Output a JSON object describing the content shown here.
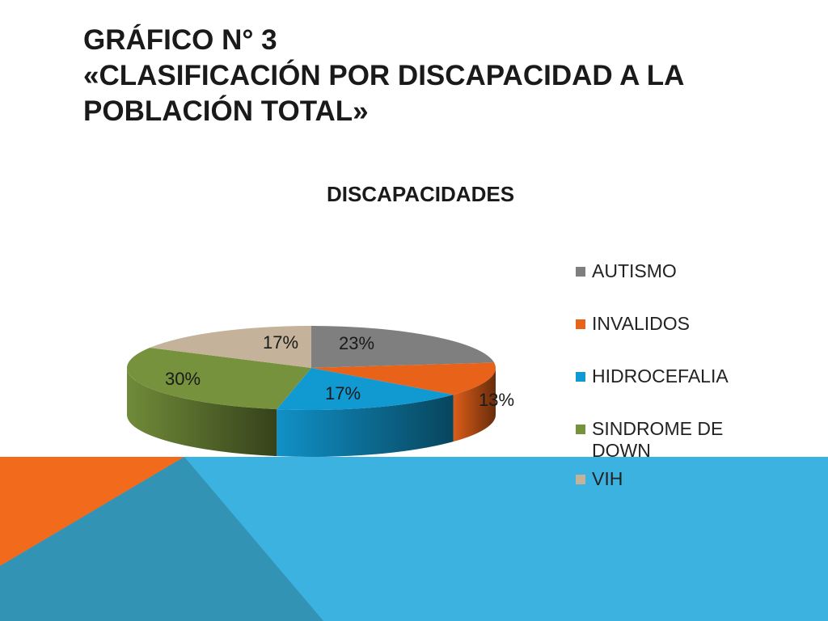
{
  "slide": {
    "title_lines": [
      "GRÁFICO N° 3",
      "«CLASIFICACIÓN POR DISCAPACIDAD A LA",
      "POBLACIÓN TOTAL»"
    ]
  },
  "theme": {
    "background_orange": "#f26b1d",
    "background_blue": "#3cb2e0",
    "background_dark_blue": "#3393b5"
  },
  "chart_data": {
    "type": "pie",
    "title": "DISCAPACIDADES",
    "legend_position": "right",
    "style": "3d",
    "slices": [
      {
        "label": "AUTISMO",
        "value": 23,
        "display": "23%",
        "color": "#7f7f7f"
      },
      {
        "label": "INVALIDOS",
        "value": 13,
        "display": "13%",
        "color": "#e8621a"
      },
      {
        "label": "HIDROCEFALIA",
        "value": 17,
        "display": "17%",
        "color": "#1199d1"
      },
      {
        "label": "SINDROME DE DOWN",
        "value": 30,
        "display": "30%",
        "color": "#76923c"
      },
      {
        "label": "VIH",
        "value": 17,
        "display": "17%",
        "color": "#c4b29a"
      }
    ]
  }
}
